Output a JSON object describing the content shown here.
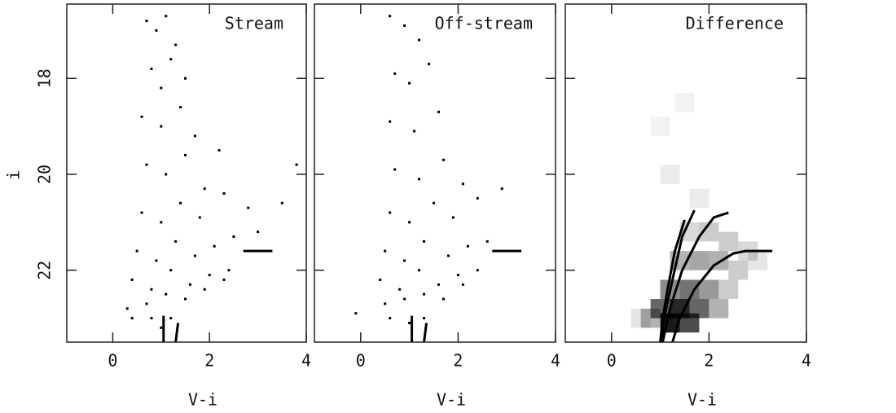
{
  "chart_data": [
    {
      "type": "scatter",
      "title": "Stream",
      "xlabel": "V-i",
      "ylabel": "i",
      "xlim": [
        -0.95,
        4
      ],
      "ylim": [
        23.5,
        16.45
      ],
      "xticks": [
        0,
        2,
        4
      ],
      "yticks": [
        18,
        20,
        22
      ],
      "color": "#000000",
      "x": [
        0.7,
        0.9,
        1.1,
        1.3,
        0.8,
        1.0,
        1.2,
        1.5,
        0.6,
        1.0,
        1.4,
        1.7,
        0.7,
        1.1,
        1.5,
        1.9,
        2.2,
        0.6,
        1.0,
        1.4,
        1.8,
        2.3,
        2.8,
        0.5,
        0.9,
        1.3,
        1.7,
        2.1,
        2.5,
        3.0,
        3.5,
        0.4,
        0.8,
        1.2,
        1.6,
        2.0,
        2.4,
        0.3,
        0.7,
        1.1,
        1.5,
        1.9,
        2.3,
        0.4,
        0.8,
        1.2,
        1.0,
        3.8
      ],
      "y": [
        16.8,
        17.0,
        16.7,
        17.3,
        17.8,
        18.2,
        17.6,
        18.0,
        18.8,
        19.0,
        18.6,
        19.2,
        19.8,
        20.0,
        19.6,
        20.3,
        19.5,
        20.8,
        21.0,
        20.6,
        20.9,
        20.4,
        20.7,
        21.6,
        21.8,
        21.4,
        21.7,
        21.5,
        21.3,
        21.2,
        20.6,
        22.2,
        22.4,
        22.0,
        22.3,
        22.1,
        22.0,
        22.8,
        22.7,
        22.5,
        22.6,
        22.4,
        22.2,
        23.0,
        23.0,
        23.0,
        23.2,
        19.8
      ],
      "lines": [
        {
          "x": [
            2.7,
            3.3
          ],
          "y": [
            21.6,
            21.6
          ]
        },
        {
          "x": [
            1.05,
            1.05
          ],
          "y": [
            23.5,
            22.95
          ]
        },
        {
          "x": [
            1.3,
            1.35
          ],
          "y": [
            23.5,
            23.1
          ]
        }
      ]
    },
    {
      "type": "scatter",
      "title": "Off-stream",
      "xlabel": "V-i",
      "xlim": [
        -0.95,
        4
      ],
      "ylim": [
        23.5,
        16.45
      ],
      "xticks": [
        0,
        2,
        4
      ],
      "yticks": [
        18,
        20,
        22
      ],
      "color": "#000000",
      "x": [
        0.6,
        0.9,
        1.2,
        0.7,
        1.0,
        1.4,
        0.6,
        1.1,
        1.6,
        0.7,
        1.2,
        1.7,
        2.1,
        0.6,
        1.0,
        1.5,
        1.9,
        2.4,
        0.5,
        0.9,
        1.3,
        1.8,
        2.2,
        2.6,
        0.4,
        0.8,
        1.2,
        1.6,
        2.0,
        2.4,
        0.5,
        0.9,
        1.3,
        1.7,
        2.1,
        0.6,
        1.0,
        1.3,
        -0.1,
        2.9
      ],
      "y": [
        16.7,
        16.9,
        17.2,
        17.9,
        18.1,
        17.7,
        18.9,
        19.1,
        18.7,
        19.9,
        20.1,
        19.7,
        20.2,
        20.8,
        21.0,
        20.6,
        20.9,
        20.5,
        21.6,
        21.8,
        21.4,
        21.7,
        21.5,
        21.4,
        22.2,
        22.4,
        22.0,
        22.3,
        22.1,
        22.0,
        22.7,
        22.6,
        22.5,
        22.6,
        22.3,
        23.0,
        23.1,
        23.0,
        22.9,
        20.3
      ],
      "lines": [
        {
          "x": [
            2.7,
            3.3
          ],
          "y": [
            21.6,
            21.6
          ]
        },
        {
          "x": [
            1.05,
            1.05
          ],
          "y": [
            23.5,
            22.95
          ]
        },
        {
          "x": [
            1.3,
            1.35
          ],
          "y": [
            23.5,
            23.1
          ]
        }
      ]
    },
    {
      "type": "heatmap",
      "title": "Difference",
      "xlabel": "V-i",
      "xlim": [
        -0.95,
        4
      ],
      "ylim": [
        23.5,
        16.45
      ],
      "xticks": [
        0,
        2,
        4
      ],
      "yticks": [
        18,
        20,
        22
      ],
      "color": "#000000",
      "x": [
        1.0,
        1.5,
        1.2,
        1.8,
        1.6,
        2.0,
        2.4,
        2.8,
        1.4,
        1.8,
        2.2,
        2.6,
        1.2,
        1.6,
        2.0,
        2.4,
        1.0,
        1.4,
        1.8,
        2.2,
        0.8,
        1.2,
        1.6,
        0.6,
        3.0
      ],
      "y": [
        19.0,
        18.5,
        20.0,
        20.5,
        21.2,
        21.2,
        21.4,
        21.6,
        21.8,
        21.8,
        21.8,
        22.0,
        22.4,
        22.4,
        22.4,
        22.4,
        22.8,
        22.8,
        22.8,
        22.8,
        23.0,
        23.1,
        23.1,
        23.0,
        21.8
      ],
      "values": [
        0.05,
        0.05,
        0.08,
        0.08,
        0.15,
        0.2,
        0.2,
        0.15,
        0.3,
        0.35,
        0.3,
        0.2,
        0.45,
        0.55,
        0.4,
        0.2,
        0.6,
        0.85,
        0.6,
        0.3,
        0.3,
        0.9,
        0.7,
        0.1,
        0.1
      ],
      "lines": [
        {
          "x": [
            1.0,
            1.05,
            1.15,
            1.3,
            1.5
          ],
          "y": [
            23.5,
            23.0,
            22.4,
            21.6,
            20.95
          ]
        },
        {
          "x": [
            1.0,
            1.1,
            1.25,
            1.45,
            1.7
          ],
          "y": [
            23.5,
            22.9,
            22.2,
            21.3,
            20.75
          ]
        },
        {
          "x": [
            1.05,
            1.2,
            1.45,
            1.8,
            2.1,
            2.4
          ],
          "y": [
            23.5,
            22.8,
            22.0,
            21.3,
            20.9,
            20.8
          ]
        },
        {
          "x": [
            1.25,
            1.4,
            1.7,
            2.1,
            2.5,
            2.75,
            3.3
          ],
          "y": [
            23.5,
            23.0,
            22.4,
            21.9,
            21.65,
            21.6,
            21.6
          ]
        },
        {
          "x": [
            1.05,
            1.05
          ],
          "y": [
            23.5,
            22.9
          ]
        }
      ]
    }
  ]
}
